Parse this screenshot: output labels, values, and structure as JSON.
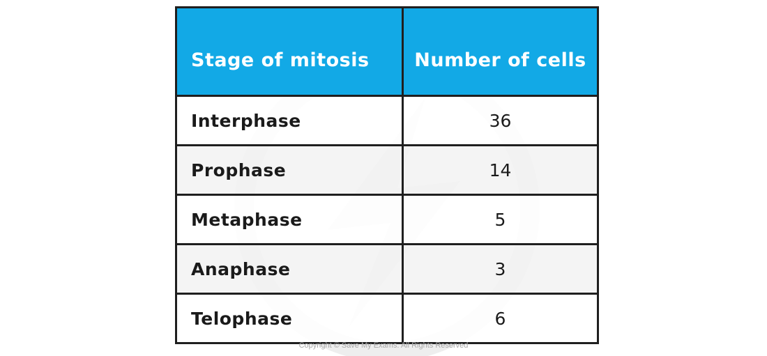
{
  "table": {
    "headers": [
      "Stage of mitosis",
      "Number of cells"
    ],
    "rows": [
      {
        "stage": "Interphase",
        "count": "36"
      },
      {
        "stage": "Prophase",
        "count": "14"
      },
      {
        "stage": "Metaphase",
        "count": "5"
      },
      {
        "stage": "Anaphase",
        "count": "3"
      },
      {
        "stage": "Telophase",
        "count": "6"
      }
    ]
  },
  "footer": {
    "copyright": "Copyright © Save My Exams. All Rights Reserved"
  },
  "colors": {
    "header_background": "#12a9e6",
    "header_text": "#ffffff",
    "border": "#1f1f1f",
    "alt_row": "#f2f2f2"
  }
}
